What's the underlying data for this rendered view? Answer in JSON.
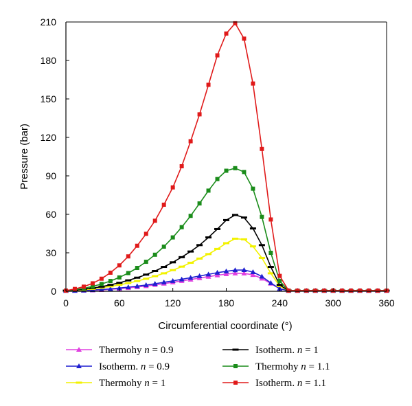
{
  "chart_data": {
    "type": "line",
    "xlabel": "Circumferential coordinate (°)",
    "ylabel": "Pressure (bar)",
    "xlim": [
      0,
      360
    ],
    "ylim": [
      0,
      210
    ],
    "xticks": [
      0,
      60,
      120,
      180,
      240,
      300,
      360
    ],
    "yticks": [
      0,
      30,
      60,
      90,
      120,
      150,
      180,
      210
    ],
    "grid": false,
    "legend_position": "bottom",
    "series": [
      {
        "name": "Thermohy n = 0.9",
        "legend_prefix": "Thermohy",
        "legend_n": "n",
        "legend_value": "= 0.9",
        "color": "#e040e0",
        "marker": "triangle",
        "x": [
          0,
          10,
          20,
          30,
          40,
          50,
          60,
          70,
          80,
          90,
          100,
          110,
          120,
          130,
          140,
          150,
          160,
          170,
          180,
          190,
          200,
          210,
          220,
          230,
          240,
          250,
          260,
          270,
          280,
          290,
          300,
          310,
          320,
          330,
          340,
          350,
          360
        ],
        "values": [
          0.5,
          0.5,
          0.6,
          0.8,
          1.1,
          1.5,
          2.0,
          2.6,
          3.3,
          4.1,
          5.0,
          6.0,
          7.0,
          8.1,
          9.2,
          10.3,
          11.4,
          12.5,
          13.4,
          14.0,
          14.0,
          12.8,
          10.0,
          6.0,
          2.0,
          0.5,
          0.5,
          0.5,
          0.5,
          0.5,
          0.5,
          0.5,
          0.5,
          0.5,
          0.5,
          0.5,
          0.5
        ]
      },
      {
        "name": "Isotherm. n = 0.9",
        "legend_prefix": "Isotherm.",
        "legend_n": "n",
        "legend_value": "= 0.9",
        "color": "#1f1fd0",
        "marker": "triangle",
        "x": [
          0,
          10,
          20,
          30,
          40,
          50,
          60,
          70,
          80,
          90,
          100,
          110,
          120,
          130,
          140,
          150,
          160,
          170,
          180,
          190,
          200,
          210,
          220,
          230,
          240,
          250,
          260,
          270,
          280,
          290,
          300,
          310,
          320,
          330,
          340,
          350,
          360
        ],
        "values": [
          0.5,
          0.5,
          0.7,
          1.0,
          1.4,
          1.9,
          2.5,
          3.2,
          4.0,
          4.9,
          5.9,
          7.0,
          8.1,
          9.3,
          10.6,
          11.9,
          13.2,
          14.5,
          15.6,
          16.5,
          16.6,
          15.0,
          11.5,
          6.5,
          2.0,
          0.5,
          0.5,
          0.5,
          0.5,
          0.5,
          0.5,
          0.5,
          0.5,
          0.5,
          0.5,
          0.5,
          0.5
        ]
      },
      {
        "name": "Thermohy n = 1",
        "legend_prefix": "Thermohy",
        "legend_n": "n",
        "legend_value": "= 1",
        "color": "#f2f200",
        "marker": "dash",
        "x": [
          0,
          10,
          20,
          30,
          40,
          50,
          60,
          70,
          80,
          90,
          100,
          110,
          120,
          130,
          140,
          150,
          160,
          170,
          180,
          190,
          200,
          210,
          220,
          230,
          240,
          250,
          260,
          270,
          280,
          290,
          300,
          310,
          320,
          330,
          340,
          350,
          360
        ],
        "values": [
          0.5,
          0.7,
          1.2,
          1.9,
          2.8,
          3.8,
          5.0,
          6.4,
          8.0,
          9.8,
          11.8,
          14.0,
          16.5,
          19.2,
          22.2,
          25.5,
          29.0,
          33.0,
          37.5,
          41.0,
          40.5,
          35.0,
          26.0,
          14.0,
          4.0,
          0.5,
          0.5,
          0.5,
          0.5,
          0.5,
          0.5,
          0.5,
          0.5,
          0.5,
          0.5,
          0.5,
          0.5
        ]
      },
      {
        "name": "Isotherm. n = 1",
        "legend_prefix": "Isotherm.",
        "legend_n": "n",
        "legend_value": "= 1",
        "color": "#000000",
        "marker": "dash",
        "x": [
          0,
          10,
          20,
          30,
          40,
          50,
          60,
          70,
          80,
          90,
          100,
          110,
          120,
          130,
          140,
          150,
          160,
          170,
          180,
          190,
          200,
          210,
          220,
          230,
          240,
          250,
          260,
          270,
          280,
          290,
          300,
          310,
          320,
          330,
          340,
          350,
          360
        ],
        "values": [
          0.5,
          0.9,
          1.6,
          2.5,
          3.6,
          5.0,
          6.6,
          8.5,
          10.6,
          13.0,
          15.8,
          19.0,
          22.6,
          26.6,
          31.0,
          36.0,
          42.0,
          48.5,
          55.5,
          59.5,
          57.5,
          49.0,
          36.0,
          19.0,
          5.0,
          0.5,
          0.5,
          0.5,
          0.5,
          0.5,
          0.5,
          0.5,
          0.5,
          0.5,
          0.5,
          0.5,
          0.5
        ]
      },
      {
        "name": "Thermohy n = 1.1",
        "legend_prefix": "Thermohy",
        "legend_n": "n",
        "legend_value": "= 1.1",
        "color": "#1a8c1a",
        "marker": "square",
        "x": [
          0,
          10,
          20,
          30,
          40,
          50,
          60,
          70,
          80,
          90,
          100,
          110,
          120,
          130,
          140,
          150,
          160,
          170,
          180,
          190,
          200,
          210,
          220,
          230,
          240,
          250,
          260,
          270,
          280,
          290,
          300,
          310,
          320,
          330,
          340,
          350,
          360
        ],
        "values": [
          0.5,
          1.2,
          2.3,
          3.8,
          5.7,
          8.0,
          10.8,
          14.2,
          18.2,
          23.0,
          28.5,
          34.8,
          42.0,
          50.0,
          58.8,
          68.5,
          78.5,
          87.5,
          94.0,
          96.0,
          93.0,
          80.0,
          58.0,
          30.0,
          8.0,
          0.5,
          0.5,
          0.5,
          0.5,
          0.5,
          0.5,
          0.5,
          0.5,
          0.5,
          0.5,
          0.5,
          0.5
        ]
      },
      {
        "name": "Isotherm. n = 1.1",
        "legend_prefix": "Isotherm.",
        "legend_n": "n",
        "legend_value": "= 1.1",
        "color": "#e01a1a",
        "marker": "square",
        "x": [
          0,
          10,
          20,
          30,
          40,
          50,
          60,
          70,
          80,
          90,
          100,
          110,
          120,
          130,
          140,
          150,
          160,
          170,
          180,
          190,
          200,
          210,
          220,
          230,
          240,
          250,
          260,
          270,
          280,
          290,
          300,
          310,
          320,
          330,
          340,
          350,
          360
        ],
        "values": [
          0.5,
          1.8,
          3.6,
          6.2,
          9.8,
          14.5,
          20.2,
          27.2,
          35.5,
          44.8,
          55.0,
          67.5,
          81.0,
          97.5,
          117.0,
          138.0,
          161.0,
          184.0,
          201.0,
          209.0,
          197.0,
          162.0,
          111.0,
          56.0,
          12.0,
          0.5,
          0.5,
          0.5,
          0.5,
          0.5,
          0.5,
          0.5,
          0.5,
          0.5,
          0.5,
          0.5,
          0.5
        ]
      }
    ]
  }
}
